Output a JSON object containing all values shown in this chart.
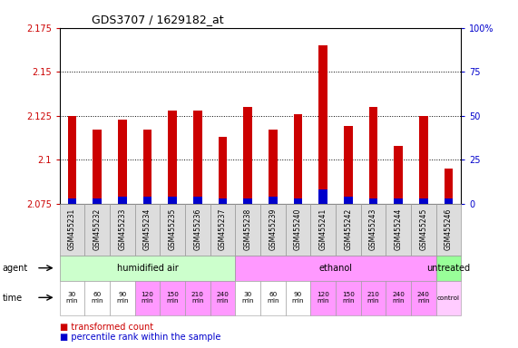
{
  "title": "GDS3707 / 1629182_at",
  "samples": [
    "GSM455231",
    "GSM455232",
    "GSM455233",
    "GSM455234",
    "GSM455235",
    "GSM455236",
    "GSM455237",
    "GSM455238",
    "GSM455239",
    "GSM455240",
    "GSM455241",
    "GSM455242",
    "GSM455243",
    "GSM455244",
    "GSM455245",
    "GSM455246"
  ],
  "transformed_count": [
    2.125,
    2.117,
    2.123,
    2.117,
    2.128,
    2.128,
    2.113,
    2.13,
    2.117,
    2.126,
    2.165,
    2.119,
    2.13,
    2.108,
    2.125,
    2.095
  ],
  "percentile_rank": [
    3,
    3,
    4,
    4,
    4,
    4,
    3,
    3,
    4,
    3,
    8,
    4,
    3,
    3,
    3,
    3
  ],
  "bar_base": 2.075,
  "ylim_left": [
    2.075,
    2.175
  ],
  "ylim_right": [
    0,
    100
  ],
  "yticks_left": [
    2.075,
    2.1,
    2.125,
    2.15,
    2.175
  ],
  "yticks_right": [
    0,
    25,
    50,
    75,
    100
  ],
  "ytick_labels_left": [
    "2.075",
    "2.1",
    "2.125",
    "2.15",
    "2.175"
  ],
  "ytick_labels_right": [
    "0",
    "25",
    "50",
    "75",
    "100%"
  ],
  "agent_groups": [
    {
      "label": "humidified air",
      "start": 0,
      "end": 7,
      "color": "#ccffcc"
    },
    {
      "label": "ethanol",
      "start": 7,
      "end": 15,
      "color": "#ff99ff"
    },
    {
      "label": "untreated",
      "start": 15,
      "end": 16,
      "color": "#99ff99"
    }
  ],
  "time_per_sample": [
    {
      "label": "30\nmin",
      "color": "#ffffff"
    },
    {
      "label": "60\nmin",
      "color": "#ffffff"
    },
    {
      "label": "90\nmin",
      "color": "#ffffff"
    },
    {
      "label": "120\nmin",
      "color": "#ff99ff"
    },
    {
      "label": "150\nmin",
      "color": "#ff99ff"
    },
    {
      "label": "210\nmin",
      "color": "#ff99ff"
    },
    {
      "label": "240\nmin",
      "color": "#ff99ff"
    },
    {
      "label": "30\nmin",
      "color": "#ffffff"
    },
    {
      "label": "60\nmin",
      "color": "#ffffff"
    },
    {
      "label": "90\nmin",
      "color": "#ffffff"
    },
    {
      "label": "120\nmin",
      "color": "#ff99ff"
    },
    {
      "label": "150\nmin",
      "color": "#ff99ff"
    },
    {
      "label": "210\nmin",
      "color": "#ff99ff"
    },
    {
      "label": "240\nmin",
      "color": "#ff99ff"
    },
    {
      "label": "240\nmin",
      "color": "#ff99ff"
    },
    {
      "label": "control",
      "color": "#ffccff"
    }
  ],
  "red_color": "#cc0000",
  "blue_color": "#0000cc",
  "bar_width": 0.35,
  "dotted_line_color": "#000000",
  "label_color_left": "#cc0000",
  "label_color_right": "#0000cc",
  "bg_color": "#ffffff"
}
